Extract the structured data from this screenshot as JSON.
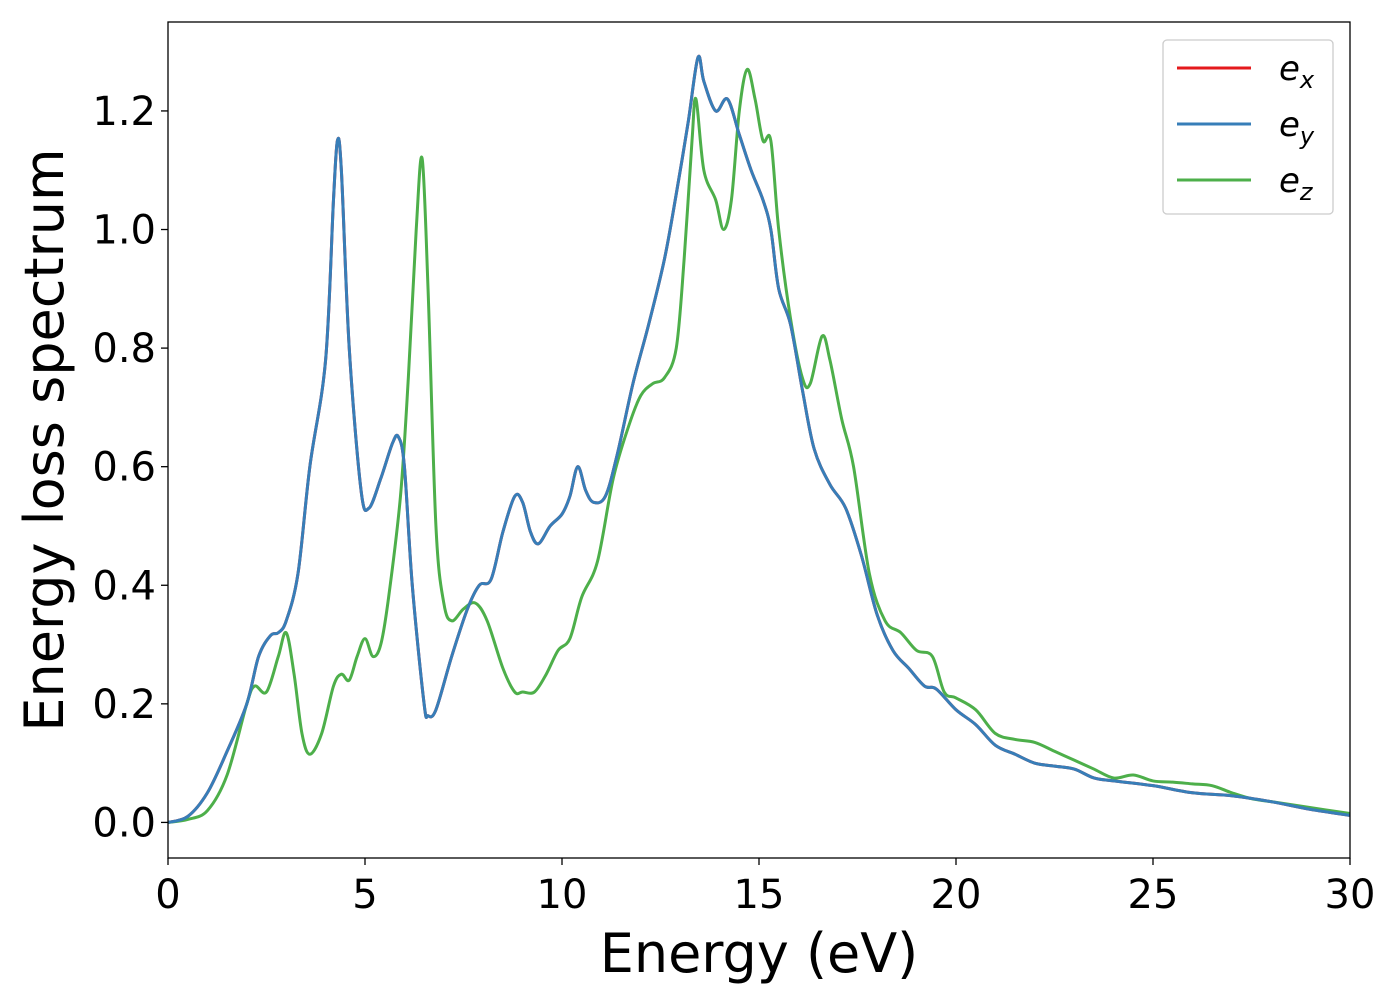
{
  "chart_data": {
    "type": "line",
    "xlabel": "Energy (eV)",
    "ylabel": "Energy loss spectrum",
    "xlim": [
      0,
      30
    ],
    "ylim": [
      -0.06,
      1.35
    ],
    "xticks": [
      0,
      5,
      10,
      15,
      20,
      25,
      30
    ],
    "yticks": [
      0.0,
      0.2,
      0.4,
      0.6,
      0.8,
      1.0,
      1.2
    ],
    "xtick_labels": [
      "0",
      "5",
      "10",
      "15",
      "20",
      "25",
      "30"
    ],
    "ytick_labels": [
      "0.0",
      "0.2",
      "0.4",
      "0.6",
      "0.8",
      "1.0",
      "1.2"
    ],
    "grid": false,
    "legend_position": "top-right",
    "series": [
      {
        "name": "e_x",
        "label_base": "e",
        "label_sub": "x",
        "color": "#e41a1c",
        "points": [
          [
            0,
            0.0
          ],
          [
            0.5,
            0.01
          ],
          [
            1.0,
            0.05
          ],
          [
            1.5,
            0.12
          ],
          [
            2.0,
            0.2
          ],
          [
            2.3,
            0.28
          ],
          [
            2.6,
            0.315
          ],
          [
            2.8,
            0.32
          ],
          [
            3.0,
            0.34
          ],
          [
            3.3,
            0.42
          ],
          [
            3.6,
            0.6
          ],
          [
            4.0,
            0.78
          ],
          [
            4.2,
            1.05
          ],
          [
            4.3,
            1.15
          ],
          [
            4.4,
            1.1
          ],
          [
            4.6,
            0.8
          ],
          [
            4.9,
            0.56
          ],
          [
            5.1,
            0.53
          ],
          [
            5.4,
            0.58
          ],
          [
            5.7,
            0.64
          ],
          [
            5.85,
            0.65
          ],
          [
            6.0,
            0.6
          ],
          [
            6.2,
            0.4
          ],
          [
            6.5,
            0.2
          ],
          [
            6.6,
            0.18
          ],
          [
            6.8,
            0.19
          ],
          [
            7.2,
            0.28
          ],
          [
            7.6,
            0.36
          ],
          [
            7.9,
            0.4
          ],
          [
            8.2,
            0.41
          ],
          [
            8.5,
            0.49
          ],
          [
            8.8,
            0.55
          ],
          [
            9.0,
            0.54
          ],
          [
            9.2,
            0.49
          ],
          [
            9.4,
            0.47
          ],
          [
            9.7,
            0.5
          ],
          [
            10.0,
            0.52
          ],
          [
            10.2,
            0.55
          ],
          [
            10.4,
            0.6
          ],
          [
            10.6,
            0.56
          ],
          [
            10.8,
            0.54
          ],
          [
            11.1,
            0.55
          ],
          [
            11.4,
            0.62
          ],
          [
            11.8,
            0.74
          ],
          [
            12.2,
            0.84
          ],
          [
            12.6,
            0.95
          ],
          [
            12.9,
            1.06
          ],
          [
            13.2,
            1.18
          ],
          [
            13.45,
            1.29
          ],
          [
            13.6,
            1.25
          ],
          [
            13.9,
            1.2
          ],
          [
            14.2,
            1.22
          ],
          [
            14.5,
            1.16
          ],
          [
            14.8,
            1.1
          ],
          [
            15.1,
            1.05
          ],
          [
            15.3,
            1.0
          ],
          [
            15.5,
            0.9
          ],
          [
            15.8,
            0.84
          ],
          [
            16.1,
            0.73
          ],
          [
            16.4,
            0.63
          ],
          [
            16.8,
            0.57
          ],
          [
            17.2,
            0.53
          ],
          [
            17.6,
            0.45
          ],
          [
            18.0,
            0.35
          ],
          [
            18.4,
            0.29
          ],
          [
            18.8,
            0.26
          ],
          [
            19.2,
            0.23
          ],
          [
            19.5,
            0.225
          ],
          [
            20.0,
            0.19
          ],
          [
            20.5,
            0.165
          ],
          [
            21.0,
            0.13
          ],
          [
            21.5,
            0.115
          ],
          [
            22.0,
            0.1
          ],
          [
            22.5,
            0.095
          ],
          [
            23.0,
            0.09
          ],
          [
            23.5,
            0.075
          ],
          [
            24.0,
            0.07
          ],
          [
            25.0,
            0.062
          ],
          [
            26.0,
            0.05
          ],
          [
            27.0,
            0.045
          ],
          [
            28.0,
            0.035
          ],
          [
            29.0,
            0.022
          ],
          [
            30.0,
            0.012
          ]
        ]
      },
      {
        "name": "e_y",
        "label_base": "e",
        "label_sub": "y",
        "color": "#377eb8",
        "points": [
          [
            0,
            0.0
          ],
          [
            0.5,
            0.01
          ],
          [
            1.0,
            0.05
          ],
          [
            1.5,
            0.12
          ],
          [
            2.0,
            0.2
          ],
          [
            2.3,
            0.28
          ],
          [
            2.6,
            0.315
          ],
          [
            2.8,
            0.32
          ],
          [
            3.0,
            0.34
          ],
          [
            3.3,
            0.42
          ],
          [
            3.6,
            0.6
          ],
          [
            4.0,
            0.78
          ],
          [
            4.2,
            1.05
          ],
          [
            4.3,
            1.15
          ],
          [
            4.4,
            1.1
          ],
          [
            4.6,
            0.8
          ],
          [
            4.9,
            0.56
          ],
          [
            5.1,
            0.53
          ],
          [
            5.4,
            0.58
          ],
          [
            5.7,
            0.64
          ],
          [
            5.85,
            0.65
          ],
          [
            6.0,
            0.6
          ],
          [
            6.2,
            0.4
          ],
          [
            6.5,
            0.2
          ],
          [
            6.6,
            0.18
          ],
          [
            6.8,
            0.19
          ],
          [
            7.2,
            0.28
          ],
          [
            7.6,
            0.36
          ],
          [
            7.9,
            0.4
          ],
          [
            8.2,
            0.41
          ],
          [
            8.5,
            0.49
          ],
          [
            8.8,
            0.55
          ],
          [
            9.0,
            0.54
          ],
          [
            9.2,
            0.49
          ],
          [
            9.4,
            0.47
          ],
          [
            9.7,
            0.5
          ],
          [
            10.0,
            0.52
          ],
          [
            10.2,
            0.55
          ],
          [
            10.4,
            0.6
          ],
          [
            10.6,
            0.56
          ],
          [
            10.8,
            0.54
          ],
          [
            11.1,
            0.55
          ],
          [
            11.4,
            0.62
          ],
          [
            11.8,
            0.74
          ],
          [
            12.2,
            0.84
          ],
          [
            12.6,
            0.95
          ],
          [
            12.9,
            1.06
          ],
          [
            13.2,
            1.18
          ],
          [
            13.45,
            1.29
          ],
          [
            13.6,
            1.25
          ],
          [
            13.9,
            1.2
          ],
          [
            14.2,
            1.22
          ],
          [
            14.5,
            1.16
          ],
          [
            14.8,
            1.1
          ],
          [
            15.1,
            1.05
          ],
          [
            15.3,
            1.0
          ],
          [
            15.5,
            0.9
          ],
          [
            15.8,
            0.84
          ],
          [
            16.1,
            0.73
          ],
          [
            16.4,
            0.63
          ],
          [
            16.8,
            0.57
          ],
          [
            17.2,
            0.53
          ],
          [
            17.6,
            0.45
          ],
          [
            18.0,
            0.35
          ],
          [
            18.4,
            0.29
          ],
          [
            18.8,
            0.26
          ],
          [
            19.2,
            0.23
          ],
          [
            19.5,
            0.225
          ],
          [
            20.0,
            0.19
          ],
          [
            20.5,
            0.165
          ],
          [
            21.0,
            0.13
          ],
          [
            21.5,
            0.115
          ],
          [
            22.0,
            0.1
          ],
          [
            22.5,
            0.095
          ],
          [
            23.0,
            0.09
          ],
          [
            23.5,
            0.075
          ],
          [
            24.0,
            0.07
          ],
          [
            25.0,
            0.062
          ],
          [
            26.0,
            0.05
          ],
          [
            27.0,
            0.045
          ],
          [
            28.0,
            0.035
          ],
          [
            29.0,
            0.022
          ],
          [
            30.0,
            0.012
          ]
        ]
      },
      {
        "name": "e_z",
        "label_base": "e",
        "label_sub": "z",
        "color": "#4daf4a",
        "points": [
          [
            0,
            0.0
          ],
          [
            0.5,
            0.005
          ],
          [
            1.0,
            0.02
          ],
          [
            1.5,
            0.08
          ],
          [
            2.0,
            0.2
          ],
          [
            2.2,
            0.23
          ],
          [
            2.5,
            0.22
          ],
          [
            2.8,
            0.28
          ],
          [
            3.0,
            0.32
          ],
          [
            3.2,
            0.25
          ],
          [
            3.4,
            0.15
          ],
          [
            3.6,
            0.115
          ],
          [
            3.9,
            0.15
          ],
          [
            4.2,
            0.23
          ],
          [
            4.4,
            0.25
          ],
          [
            4.6,
            0.24
          ],
          [
            4.8,
            0.28
          ],
          [
            5.0,
            0.31
          ],
          [
            5.2,
            0.28
          ],
          [
            5.4,
            0.3
          ],
          [
            5.6,
            0.38
          ],
          [
            5.9,
            0.55
          ],
          [
            6.1,
            0.75
          ],
          [
            6.3,
            1.0
          ],
          [
            6.45,
            1.12
          ],
          [
            6.6,
            0.9
          ],
          [
            6.8,
            0.5
          ],
          [
            7.0,
            0.37
          ],
          [
            7.2,
            0.34
          ],
          [
            7.5,
            0.36
          ],
          [
            7.8,
            0.37
          ],
          [
            8.1,
            0.34
          ],
          [
            8.5,
            0.26
          ],
          [
            8.8,
            0.22
          ],
          [
            9.0,
            0.22
          ],
          [
            9.3,
            0.22
          ],
          [
            9.6,
            0.25
          ],
          [
            9.9,
            0.29
          ],
          [
            10.2,
            0.31
          ],
          [
            10.5,
            0.38
          ],
          [
            10.9,
            0.44
          ],
          [
            11.3,
            0.58
          ],
          [
            11.7,
            0.67
          ],
          [
            12.0,
            0.72
          ],
          [
            12.3,
            0.74
          ],
          [
            12.6,
            0.75
          ],
          [
            12.9,
            0.8
          ],
          [
            13.1,
            0.95
          ],
          [
            13.3,
            1.15
          ],
          [
            13.4,
            1.22
          ],
          [
            13.6,
            1.1
          ],
          [
            13.9,
            1.05
          ],
          [
            14.1,
            1.0
          ],
          [
            14.3,
            1.05
          ],
          [
            14.5,
            1.2
          ],
          [
            14.7,
            1.27
          ],
          [
            14.9,
            1.22
          ],
          [
            15.1,
            1.15
          ],
          [
            15.3,
            1.15
          ],
          [
            15.5,
            1.0
          ],
          [
            15.8,
            0.85
          ],
          [
            16.1,
            0.75
          ],
          [
            16.3,
            0.74
          ],
          [
            16.6,
            0.82
          ],
          [
            16.8,
            0.78
          ],
          [
            17.1,
            0.68
          ],
          [
            17.4,
            0.6
          ],
          [
            17.8,
            0.42
          ],
          [
            18.2,
            0.34
          ],
          [
            18.6,
            0.32
          ],
          [
            19.0,
            0.29
          ],
          [
            19.4,
            0.28
          ],
          [
            19.7,
            0.22
          ],
          [
            20.0,
            0.21
          ],
          [
            20.5,
            0.19
          ],
          [
            21.0,
            0.15
          ],
          [
            21.5,
            0.14
          ],
          [
            22.0,
            0.135
          ],
          [
            22.5,
            0.12
          ],
          [
            23.0,
            0.105
          ],
          [
            23.5,
            0.09
          ],
          [
            24.0,
            0.075
          ],
          [
            24.5,
            0.08
          ],
          [
            25.0,
            0.07
          ],
          [
            25.5,
            0.068
          ],
          [
            26.0,
            0.065
          ],
          [
            26.5,
            0.062
          ],
          [
            27.0,
            0.05
          ],
          [
            27.5,
            0.04
          ],
          [
            28.0,
            0.035
          ],
          [
            29.0,
            0.025
          ],
          [
            30.0,
            0.015
          ]
        ]
      }
    ]
  }
}
